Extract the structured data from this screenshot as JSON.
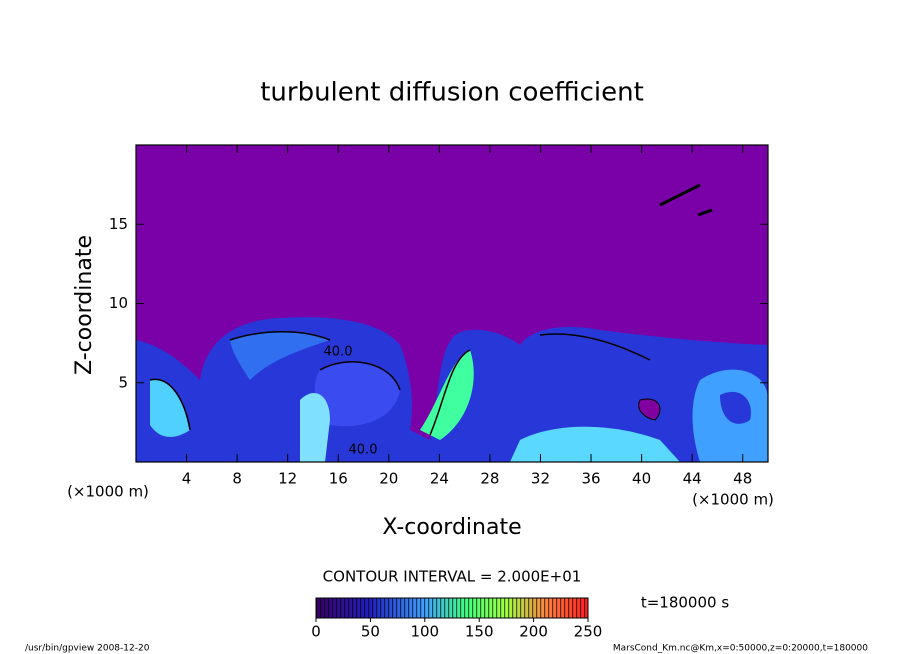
{
  "chart_data": {
    "type": "contour",
    "title": "turbulent diffusion coefficient",
    "x_label": "X-coordinate",
    "y_label": "Z-coordinate",
    "x_unit": "(×1000 m)",
    "y_unit": "(×1000 m)",
    "xlim": [
      0,
      50
    ],
    "xticks": [
      4,
      8,
      12,
      16,
      20,
      24,
      28,
      32,
      36,
      40,
      44,
      48
    ],
    "ylim": [
      0,
      20
    ],
    "yticks": [
      5,
      10,
      15
    ],
    "contour_labels": [
      "40.0",
      "40.0"
    ],
    "contour_interval": "CONTOUR INTERVAL = 2.000E+01",
    "time_label": "t=180000 s",
    "colorbar": {
      "lim": [
        0,
        250
      ],
      "ticks": [
        0,
        50,
        100,
        150,
        200,
        250
      ]
    },
    "footer_left": "/usr/bin/gpview  2008-12-20",
    "footer_right": "MarsCond_Km.nc@Km,x=0:50000,z=0:20000,t=180000"
  }
}
